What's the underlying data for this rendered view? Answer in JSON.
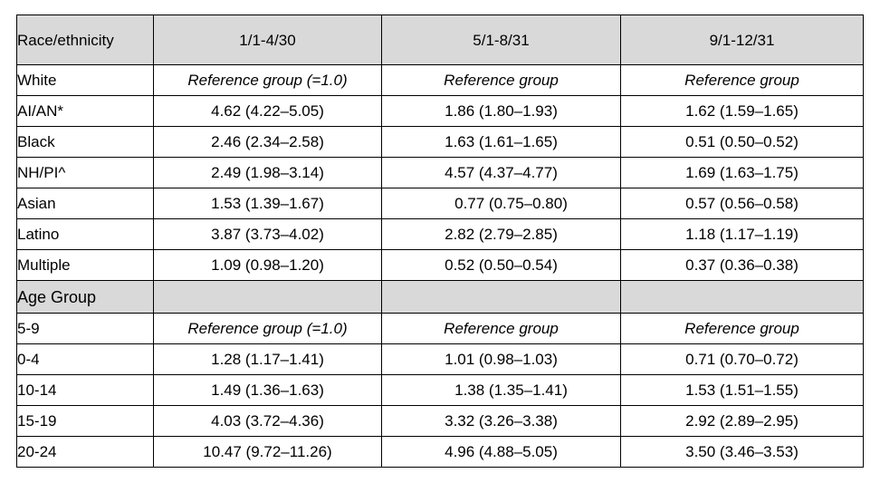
{
  "header": {
    "col0": "Race/ethnicity",
    "col1": "1/1-4/30",
    "col2": "5/1-8/31",
    "col3": "9/1-12/31"
  },
  "race_rows": [
    {
      "label": "White",
      "v1": "Reference group (=1.0)",
      "v2": "Reference group",
      "v3": "Reference group"
    },
    {
      "label": "AI/AN*",
      "v1": "4.62 (4.22–5.05)",
      "v2": "1.86 (1.80–1.93)",
      "v3": "1.62 (1.59–1.65)"
    },
    {
      "label": "Black",
      "v1": "2.46 (2.34–2.58)",
      "v2": "1.63 (1.61–1.65)",
      "v3": "0.51 (0.50–0.52)"
    },
    {
      "label": "NH/PI^",
      "v1": "2.49 (1.98–3.14)",
      "v2": "4.57 (4.37–4.77)",
      "v3": "1.69 (1.63–1.75)"
    },
    {
      "label": "Asian",
      "v1": "1.53 (1.39–1.67)",
      "v2": "0.77 (0.75–0.80)",
      "v3": "0.57 (0.56–0.58)"
    },
    {
      "label": "Latino",
      "v1": "3.87 (3.73–4.02)",
      "v2": "2.82 (2.79–2.85)",
      "v3": "1.18 (1.17–1.19)"
    },
    {
      "label": "Multiple",
      "v1": "1.09 (0.98–1.20)",
      "v2": "0.52 (0.50–0.54)",
      "v3": "0.37 (0.36–0.38)"
    }
  ],
  "section": {
    "label": "Age Group"
  },
  "age_rows": [
    {
      "label": "5-9",
      "v1": "Reference group (=1.0)",
      "v2": "Reference group",
      "v3": "Reference group"
    },
    {
      "label": "0-4",
      "v1": "1.28 (1.17–1.41)",
      "v2": "1.01 (0.98–1.03)",
      "v3": "0.71 (0.70–0.72)"
    },
    {
      "label": "10-14",
      "v1": "1.49 (1.36–1.63)",
      "v2": "1.38 (1.35–1.41)",
      "v3": "1.53 (1.51–1.55)"
    },
    {
      "label": "15-19",
      "v1": "4.03 (3.72–4.36)",
      "v2": "3.32 (3.26–3.38)",
      "v3": "2.92 (2.89–2.95)"
    },
    {
      "label": "20-24",
      "v1": "10.47 (9.72–11.26)",
      "v2": "4.96 (4.88–5.05)",
      "v3": "3.50 (3.46–3.53)"
    }
  ]
}
